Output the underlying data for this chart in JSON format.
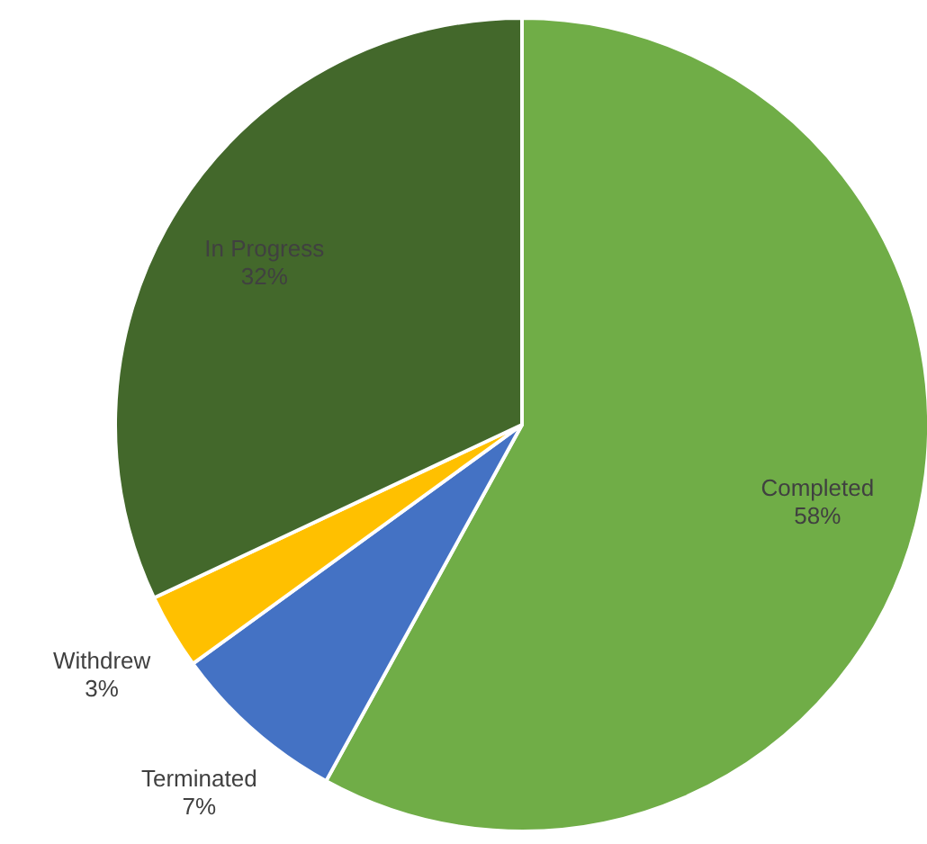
{
  "chart_data": {
    "type": "pie",
    "categories": [
      "Completed",
      "Terminated",
      "Withdrew",
      "In Progress"
    ],
    "values": [
      58,
      7,
      3,
      32
    ],
    "colors": [
      "#70ad47",
      "#4472c4",
      "#ffc000",
      "#43682b"
    ],
    "value_labels": [
      "58%",
      "7%",
      "3%",
      "32%"
    ]
  }
}
